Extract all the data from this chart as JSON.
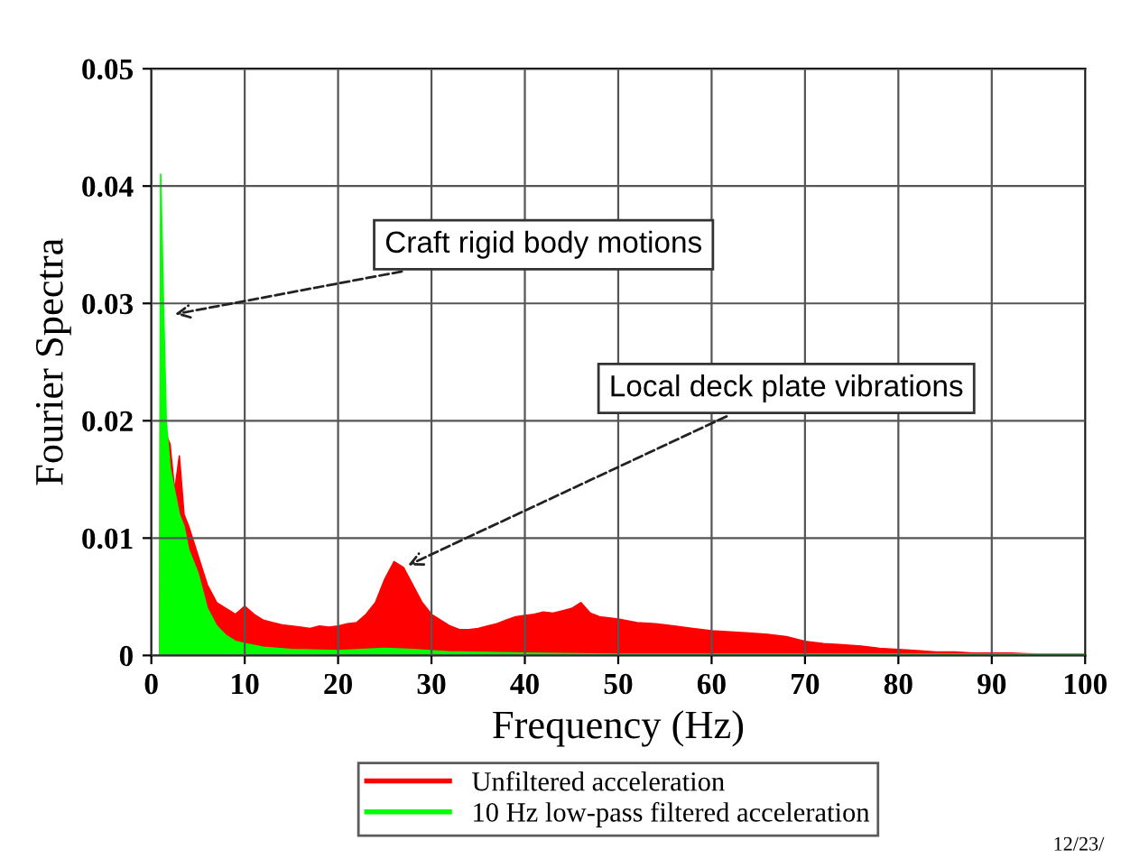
{
  "chart_data": {
    "type": "area",
    "xlabel": "Frequency (Hz)",
    "ylabel": "Fourier Spectra",
    "xlim": [
      0,
      100
    ],
    "xticks": [
      0,
      10,
      20,
      30,
      40,
      50,
      60,
      70,
      80,
      90,
      100
    ],
    "ylim": [
      0,
      0.05
    ],
    "yticks": [
      0,
      0.01,
      0.02,
      0.03,
      0.04,
      0.05
    ],
    "grid": true,
    "legend": "bottom",
    "series": [
      {
        "name": "Unfiltered acceleration",
        "color": "#ff0000",
        "x": [
          0.9,
          1,
          1.5,
          2,
          2.5,
          3,
          3.5,
          4,
          5,
          6,
          7,
          8,
          9,
          10,
          11,
          12,
          13,
          14,
          15,
          16,
          17,
          18,
          19,
          20,
          21,
          22,
          23,
          24,
          25,
          26,
          27,
          28,
          29,
          30,
          31,
          32,
          33,
          34,
          35,
          36,
          37,
          38,
          39,
          40,
          41,
          42,
          43,
          44,
          45,
          46,
          47,
          48,
          49,
          50,
          52,
          54,
          56,
          58,
          60,
          62,
          64,
          66,
          68,
          70,
          72,
          74,
          76,
          78,
          80,
          82,
          84,
          86,
          88,
          90,
          92,
          95,
          100
        ],
        "values": [
          0,
          0.0315,
          0.019,
          0.018,
          0.014,
          0.017,
          0.012,
          0.011,
          0.0085,
          0.006,
          0.0045,
          0.004,
          0.0035,
          0.0042,
          0.0035,
          0.003,
          0.0028,
          0.0026,
          0.0025,
          0.0024,
          0.0023,
          0.0025,
          0.0024,
          0.0025,
          0.0027,
          0.0028,
          0.0035,
          0.0045,
          0.0065,
          0.008,
          0.0075,
          0.006,
          0.0045,
          0.0035,
          0.003,
          0.0025,
          0.0022,
          0.0022,
          0.0023,
          0.0025,
          0.0027,
          0.003,
          0.0033,
          0.0034,
          0.0035,
          0.0037,
          0.0036,
          0.0038,
          0.004,
          0.0045,
          0.0036,
          0.0033,
          0.0032,
          0.0031,
          0.0028,
          0.0027,
          0.0025,
          0.0023,
          0.0021,
          0.002,
          0.0019,
          0.0018,
          0.0016,
          0.0012,
          0.001,
          0.0009,
          0.0008,
          0.0006,
          0.0005,
          0.0004,
          0.0003,
          0.0003,
          0.0002,
          0.0002,
          0.0002,
          0.0001,
          0.0001
        ]
      },
      {
        "name": "10 Hz low-pass filtered acceleration",
        "color": "#00ff00",
        "x": [
          0.9,
          1,
          1.3,
          1.6,
          2,
          2.5,
          3,
          3.5,
          4,
          5,
          6,
          7,
          8,
          9,
          10,
          12,
          15,
          20,
          25,
          28,
          32,
          40,
          50,
          60,
          80,
          100
        ],
        "values": [
          0,
          0.041,
          0.03,
          0.02,
          0.016,
          0.014,
          0.012,
          0.011,
          0.009,
          0.007,
          0.004,
          0.0025,
          0.0017,
          0.0012,
          0.001,
          0.0007,
          0.0005,
          0.0004,
          0.0006,
          0.0005,
          0.0003,
          0.0002,
          0.0001,
          0.0001,
          0.0001,
          0.0001
        ]
      }
    ],
    "annotations": [
      {
        "text": "Craft rigid body motions",
        "x": 2,
        "y": 0.029
      },
      {
        "text": "Local deck plate vibrations",
        "x": 27,
        "y": 0.0075
      },
      "12/23/"
    ]
  }
}
